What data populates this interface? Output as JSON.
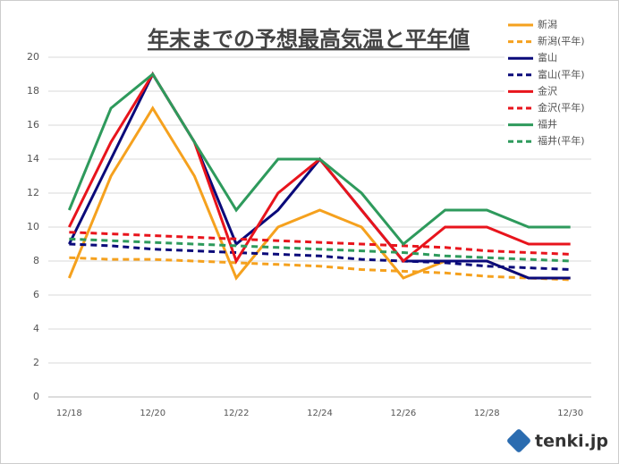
{
  "chart_data": {
    "type": "line",
    "title": "年末までの予想最高気温と平年値",
    "categories": [
      "12/18",
      null,
      "12/20",
      null,
      "12/22",
      null,
      "12/24",
      null,
      "12/26",
      null,
      "12/28",
      null,
      "12/30"
    ],
    "series": [
      {
        "name": "新潟",
        "color": "#f5a11e",
        "dashed": false,
        "values": [
          7,
          13,
          17,
          13,
          7,
          10,
          11,
          10,
          7,
          8,
          8,
          7,
          7
        ]
      },
      {
        "name": "新潟(平年)",
        "color": "#f5a11e",
        "dashed": true,
        "values": [
          8.2,
          8.1,
          8.1,
          8.0,
          7.9,
          7.8,
          7.7,
          7.5,
          7.4,
          7.3,
          7.1,
          7.0,
          6.9
        ]
      },
      {
        "name": "富山",
        "color": "#0a0a7a",
        "dashed": false,
        "values": [
          9,
          14,
          19,
          15,
          9,
          11,
          14,
          11,
          8,
          8,
          8,
          7,
          7
        ]
      },
      {
        "name": "富山(平年)",
        "color": "#0a0a7a",
        "dashed": true,
        "values": [
          9.0,
          8.9,
          8.7,
          8.6,
          8.5,
          8.4,
          8.3,
          8.1,
          8.0,
          7.9,
          7.7,
          7.6,
          7.5
        ]
      },
      {
        "name": "金沢",
        "color": "#e8141c",
        "dashed": false,
        "values": [
          10,
          15,
          19,
          15,
          8,
          12,
          14,
          11,
          8,
          10,
          10,
          9,
          9
        ]
      },
      {
        "name": "金沢(平年)",
        "color": "#e8141c",
        "dashed": true,
        "values": [
          9.7,
          9.6,
          9.5,
          9.4,
          9.3,
          9.2,
          9.1,
          9.0,
          8.9,
          8.8,
          8.6,
          8.5,
          8.4
        ]
      },
      {
        "name": "福井",
        "color": "#2e9a5c",
        "dashed": false,
        "values": [
          11,
          17,
          19,
          15,
          11,
          14,
          14,
          12,
          9,
          11,
          11,
          10,
          10
        ]
      },
      {
        "name": "福井(平年)",
        "color": "#2e9a5c",
        "dashed": true,
        "values": [
          9.3,
          9.2,
          9.1,
          9.0,
          8.9,
          8.8,
          8.7,
          8.6,
          8.5,
          8.3,
          8.2,
          8.1,
          8.0
        ]
      }
    ],
    "ylim": [
      0,
      20
    ],
    "yticks": [
      0,
      2,
      4,
      6,
      8,
      10,
      12,
      14,
      16,
      18,
      20
    ],
    "grid": true,
    "legend": "top-right",
    "logo": "tenki.jp"
  }
}
